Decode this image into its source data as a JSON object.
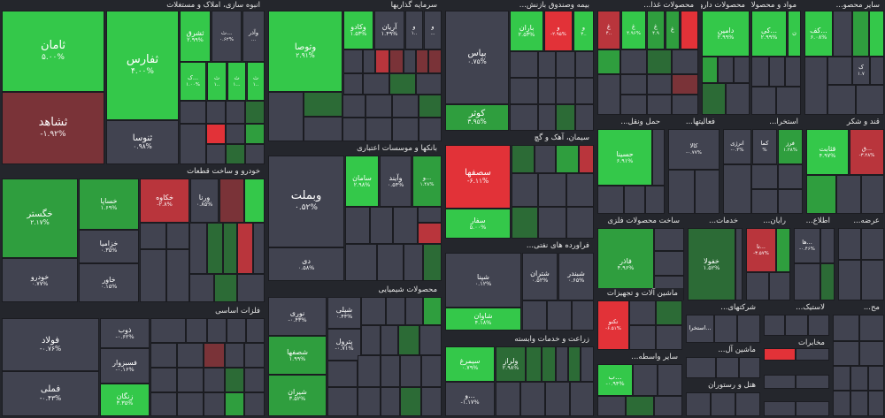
{
  "colors": {
    "up_strong": "#34c84a",
    "up": "#2f9e3e",
    "up_weak": "#2c6b36",
    "neutral": "#414350",
    "down_weak": "#7a3338",
    "down": "#b9353c",
    "down_strong": "#e23238",
    "background": "#24262c"
  },
  "sectors": [
    {
      "title": "انبوه سازی، املاک و مستغلات"
    },
    {
      "title": "سرمایه گذاریها"
    },
    {
      "title": "بیمه وصندوق بازنش..."
    },
    {
      "title": "محصولات غذا..."
    },
    {
      "title": "محصولات دارویی"
    },
    {
      "title": "مواد و محصولات..."
    },
    {
      "title": "سایر محصو..."
    },
    {
      "title": "خودرو و ساخت قطعات"
    },
    {
      "title": "بانکها و موسسات اعتباری"
    },
    {
      "title": "سیمان، آهک و گچ"
    },
    {
      "title": "حمل ونقل..."
    },
    {
      "title": "فعالیتها..."
    },
    {
      "title": "استخرا..."
    },
    {
      "title": "قند و شکر"
    },
    {
      "title": "فراورده های نفتی..."
    },
    {
      "title": "ساخت محصولات فلزی"
    },
    {
      "title": "خدمات..."
    },
    {
      "title": "رایان..."
    },
    {
      "title": "اطلاع..."
    },
    {
      "title": "عرضه..."
    },
    {
      "title": "فلزات اساسی"
    },
    {
      "title": "محصولات شیمیایی"
    },
    {
      "title": "ماشین آلات و تجهیزات"
    },
    {
      "title": "شرکتهای..."
    },
    {
      "title": "لاستیک..."
    },
    {
      "title": "مح..."
    },
    {
      "title": "سایر..."
    },
    {
      "title": "زراعت و خدمات وابسته"
    },
    {
      "title": "سایر واسطه..."
    },
    {
      "title": "ماشین آل..."
    },
    {
      "title": "هتل و رستوران"
    },
    {
      "title": "استخرا..."
    },
    {
      "title": "مخابرات"
    },
    {
      "title": "پیمانک..."
    },
    {
      "title": "دس..."
    }
  ],
  "tiles": [
    {
      "symbol": "ثامان",
      "change": "۵.۰۰%"
    },
    {
      "symbol": "ثفارس",
      "change": "۴.۰۰%"
    },
    {
      "symbol": "ثشاهد",
      "change": "-۱.۹۲%"
    },
    {
      "symbol": "ثنوسا",
      "change": "۰.۹۸%"
    },
    {
      "symbol": "ثشرق",
      "change": "۲.۹۹%"
    },
    {
      "symbol": "ث...",
      "change": "۰.۶۲%"
    },
    {
      "symbol": "وآذر",
      "change": "..."
    },
    {
      "symbol": "ک...",
      "change": "۱.۰۰%"
    },
    {
      "symbol": "ث",
      "change": "۱.."
    },
    {
      "symbol": "ث",
      "change": "۱..."
    },
    {
      "symbol": "ث",
      "change": "۱.."
    },
    {
      "symbol": "وتوصا",
      "change": "۲.۹۱%"
    },
    {
      "symbol": "وکادو",
      "change": "۱.۵۳%"
    },
    {
      "symbol": "آریان",
      "change": "۱.۴۹%"
    },
    {
      "symbol": "و",
      "change": "۱.."
    },
    {
      "symbol": "و",
      "change": "..."
    },
    {
      "symbol": "بپاس",
      "change": "۰.۷۵%"
    },
    {
      "symbol": "کوثر",
      "change": "۳.۹۵%"
    },
    {
      "symbol": "باران",
      "change": "۲.۵۳%"
    },
    {
      "symbol": "و",
      "change": "-۲.۹۵%"
    },
    {
      "symbol": "و",
      "change": "۳.."
    },
    {
      "symbol": "غ",
      "change": "۴.."
    },
    {
      "symbol": "غ",
      "change": "۴.۹۶%"
    },
    {
      "symbol": "غ",
      "change": "۴.۹"
    },
    {
      "symbol": "غ",
      "change": "۴.۹"
    },
    {
      "symbol": "دامین",
      "change": "۲.۹۹%"
    },
    {
      "symbol": "د",
      "change": "۴.۹"
    },
    {
      "symbol": "کی...",
      "change": "۲.۹۹%"
    },
    {
      "symbol": "ن",
      "change": "۴.۹"
    },
    {
      "symbol": "کف...",
      "change": "۶.۰۸%"
    },
    {
      "symbol": "ک",
      "change": "۱.۷"
    },
    {
      "symbol": "خگستر",
      "change": "۲.۱۷%"
    },
    {
      "symbol": "خساپا",
      "change": "۱.۶۹%"
    },
    {
      "symbol": "خکاوه",
      "change": "-۲.۸%"
    },
    {
      "symbol": "ورنا",
      "change": "۰.۸۵%"
    },
    {
      "symbol": "خزامیا",
      "change": "۰.۳۵%"
    },
    {
      "symbol": "خاور",
      "change": "۰.۱۵%"
    },
    {
      "symbol": "خودرو",
      "change": "۰.۷۷%"
    },
    {
      "symbol": "وبملت",
      "change": "۰.۵۲%"
    },
    {
      "symbol": "سامان",
      "change": "۲.۹۸%"
    },
    {
      "symbol": "وآیند",
      "change": "۰.۵۴%"
    },
    {
      "symbol": "و...",
      "change": "۱.۴۸%"
    },
    {
      "symbol": "دی",
      "change": "۰.۵۸%"
    },
    {
      "symbol": "سصفها",
      "change": "-۶.۱۱%"
    },
    {
      "symbol": "سفار",
      "change": "۵.۰۰%"
    },
    {
      "symbol": "حسینا",
      "change": "۶.۹۱%"
    },
    {
      "symbol": "کالا",
      "change": "-۰.۷۷%"
    },
    {
      "symbol": "انرژی",
      "change": "-۰.۴%"
    },
    {
      "symbol": "کما",
      "change": "%"
    },
    {
      "symbol": "فرز",
      "change": "۱.۲۸%"
    },
    {
      "symbol": "قثابت",
      "change": "۴.۹۷%"
    },
    {
      "symbol": "ق...",
      "change": "-۳.۲۸%"
    },
    {
      "symbol": "شپنا",
      "change": "۰.۱۲%"
    },
    {
      "symbol": "شتران",
      "change": "۰.۵۲%"
    },
    {
      "symbol": "شبندر",
      "change": "۰.۶۵%"
    },
    {
      "symbol": "شاوان",
      "change": "۴.۱۸%"
    },
    {
      "symbol": "فاذر",
      "change": "۴.۹۶%"
    },
    {
      "symbol": "خفولا",
      "change": "۱.۵۲%"
    },
    {
      "symbol": "تا...",
      "change": "-۳.۵۷%"
    },
    {
      "symbol": "ها...",
      "change": "-۰.۴۶%"
    },
    {
      "symbol": "فولاد",
      "change": "-۰.۷۶%"
    },
    {
      "symbol": "ذوب",
      "change": "-۰.۶۲%"
    },
    {
      "symbol": "فسبزوار",
      "change": "-۰.۱۶%"
    },
    {
      "symbol": "فملی",
      "change": "-۰.۴۳%"
    },
    {
      "symbol": "زنگان",
      "change": "۳.۳۵%"
    },
    {
      "symbol": "نوری",
      "change": "-۰.۴۳%"
    },
    {
      "symbol": "شپلی",
      "change": "۰.۴۴%"
    },
    {
      "symbol": "پترول",
      "change": "-۰.۷۱%"
    },
    {
      "symbol": "شصفها",
      "change": "۱.۹۹%"
    },
    {
      "symbol": "شیران",
      "change": "۳.۵۲%"
    },
    {
      "symbol": "تکنو",
      "change": "-۶.۵۱%"
    },
    {
      "symbol": "زشگزا",
      "change": "۲.۹۲%"
    },
    {
      "symbol": "زکشت",
      "change": "۱.۵۲%"
    },
    {
      "symbol": "سیمرغ",
      "change": "۰.۷۹%"
    },
    {
      "symbol": "ولراز",
      "change": "۲.۹۸%"
    },
    {
      "symbol": "و...",
      "change": "-۱.۱۷%"
    },
    {
      "symbol": "پیمانک...",
      "change": ""
    },
    {
      "symbol": "ب...",
      "change": "-۰.۹۴%"
    },
    {
      "symbol": "استخرا...",
      "change": ""
    },
    {
      "symbol": "مخابرات",
      "change": ""
    }
  ]
}
